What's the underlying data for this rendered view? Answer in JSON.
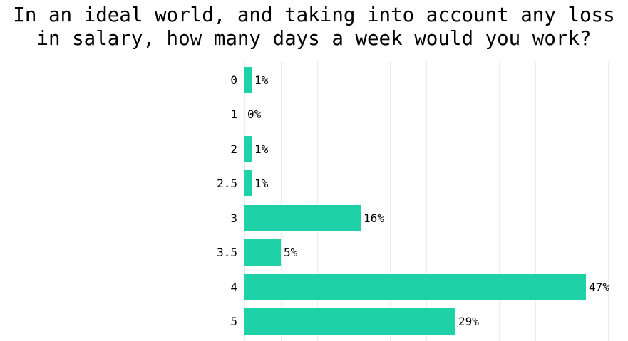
{
  "title": {
    "line1": "In an ideal world, and taking into account any loss",
    "line2": "in salary, how many days a week would you work?"
  },
  "chart_data": {
    "type": "bar",
    "orientation": "horizontal",
    "title": "In an ideal world, and taking into account any loss in salary, how many days a week would you work?",
    "categories": [
      "0",
      "1",
      "2",
      "2.5",
      "3",
      "3.5",
      "4",
      "5"
    ],
    "values": [
      1,
      0,
      1,
      1,
      16,
      5,
      47,
      29
    ],
    "value_labels": [
      "1%",
      "0%",
      "1%",
      "1%",
      "16%",
      "5%",
      "47%",
      "29%"
    ],
    "xlabel": "",
    "ylabel": "",
    "xlim": [
      0,
      52.5
    ],
    "gridline_step_pct": 5,
    "grid": "vertical-only",
    "legend": "none",
    "axis_tick_labels_shown": false,
    "bar_color": "#1fd1a6",
    "gridline_color": "#ececec",
    "text_color": "#000000",
    "background_color": "#ffffff"
  }
}
